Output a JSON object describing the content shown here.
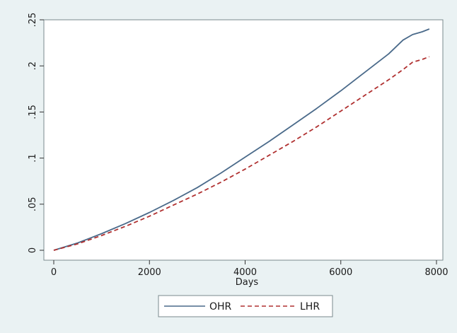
{
  "chart_data": {
    "type": "line",
    "title": "",
    "xlabel": "Days",
    "ylabel": "",
    "xlim": [
      0,
      8000
    ],
    "ylim": [
      0,
      0.25
    ],
    "x_ticks": [
      0,
      2000,
      4000,
      6000,
      8000
    ],
    "x_tick_labels": [
      "0",
      "2000",
      "4000",
      "6000",
      "8000"
    ],
    "y_ticks": [
      0,
      0.05,
      0.1,
      0.15,
      0.2,
      0.25
    ],
    "y_tick_labels": [
      "0",
      ".05",
      ".1",
      ".15",
      ".2",
      ".25"
    ],
    "grid": false,
    "legend_placement": "bottom",
    "series": [
      {
        "name": "OHR",
        "color": "#4a6a8a",
        "style": "solid",
        "points": [
          [
            0,
            0.0
          ],
          [
            500,
            0.008
          ],
          [
            1000,
            0.018
          ],
          [
            1500,
            0.029
          ],
          [
            2000,
            0.041
          ],
          [
            2500,
            0.054
          ],
          [
            3000,
            0.068
          ],
          [
            3500,
            0.084
          ],
          [
            4000,
            0.101
          ],
          [
            4500,
            0.118
          ],
          [
            5000,
            0.136
          ],
          [
            5500,
            0.154
          ],
          [
            6000,
            0.173
          ],
          [
            6500,
            0.193
          ],
          [
            7000,
            0.213
          ],
          [
            7300,
            0.228
          ],
          [
            7500,
            0.234
          ],
          [
            7700,
            0.237
          ],
          [
            7850,
            0.24
          ]
        ]
      },
      {
        "name": "LHR",
        "color": "#b03030",
        "style": "dashed",
        "points": [
          [
            0,
            0.0
          ],
          [
            500,
            0.007
          ],
          [
            1000,
            0.016
          ],
          [
            1500,
            0.026
          ],
          [
            2000,
            0.037
          ],
          [
            2500,
            0.049
          ],
          [
            3000,
            0.061
          ],
          [
            3500,
            0.074
          ],
          [
            4000,
            0.088
          ],
          [
            4500,
            0.103
          ],
          [
            5000,
            0.118
          ],
          [
            5500,
            0.134
          ],
          [
            6000,
            0.151
          ],
          [
            6500,
            0.168
          ],
          [
            7000,
            0.185
          ],
          [
            7300,
            0.196
          ],
          [
            7500,
            0.204
          ],
          [
            7700,
            0.207
          ],
          [
            7850,
            0.21
          ]
        ]
      }
    ]
  }
}
